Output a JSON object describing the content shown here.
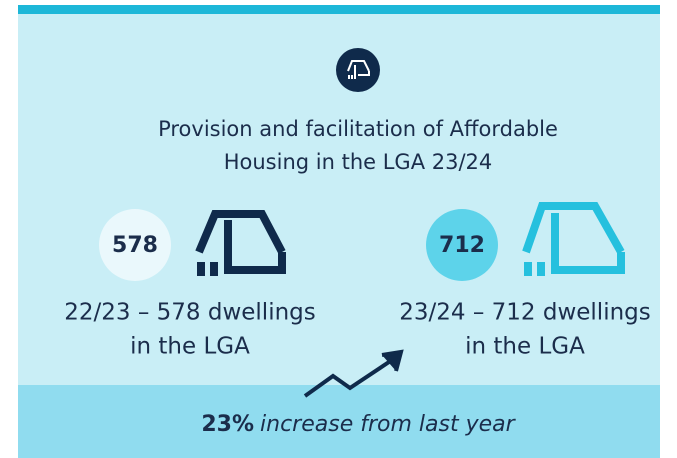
{
  "title_lines": [
    "Provision and facilitation of Affordable",
    "Housing in the LGA 23/24"
  ],
  "items": [
    {
      "badge": "578",
      "caption_lines": [
        "22/23 – 578 dwellings",
        "in the LGA"
      ]
    },
    {
      "badge": "712",
      "caption_lines": [
        "23/24 – 712 dwellings",
        "in the LGA"
      ]
    }
  ],
  "footer": {
    "highlight": "23%",
    "text": "increase from last year"
  }
}
